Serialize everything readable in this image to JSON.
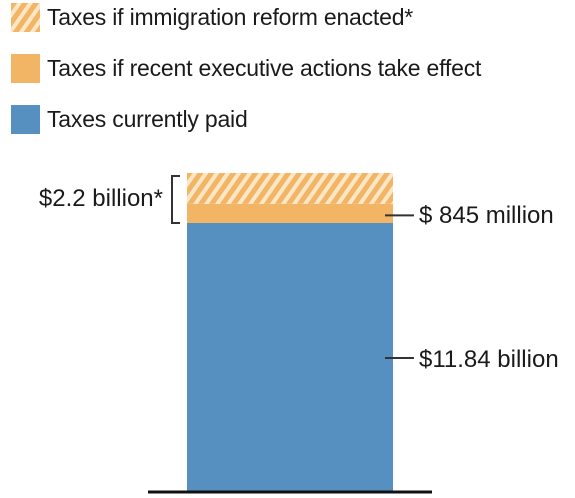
{
  "legend": {
    "items": [
      {
        "label": "Taxes if immigration reform enacted*",
        "color": "#f2b465",
        "pattern": "hatched"
      },
      {
        "label": "Taxes if recent executive actions take effect",
        "color": "#f2b465",
        "pattern": "solid"
      },
      {
        "label": "Taxes currently paid",
        "color": "#5690c0",
        "pattern": "solid"
      }
    ]
  },
  "chart_data": {
    "type": "bar",
    "stacked": true,
    "categories": [
      ""
    ],
    "series": [
      {
        "name": "Taxes currently paid",
        "values": [
          11.84
        ],
        "color": "#5690c0",
        "pattern": "solid"
      },
      {
        "name": "Taxes if recent executive actions take effect",
        "values": [
          0.845
        ],
        "color": "#f2b465",
        "pattern": "solid"
      },
      {
        "name": "Taxes if immigration reform enacted*",
        "values": [
          1.355
        ],
        "color": "#f2b465",
        "pattern": "hatched"
      }
    ],
    "labels": {
      "currently_paid": "$11.84 billion",
      "executive_actions": "$ 845 million",
      "reform_total": "$2.2 billion*"
    },
    "title": "",
    "xlabel": "",
    "ylabel": "",
    "ylim": [
      0,
      14.04
    ],
    "grid": false,
    "legend_position": "top-left"
  }
}
